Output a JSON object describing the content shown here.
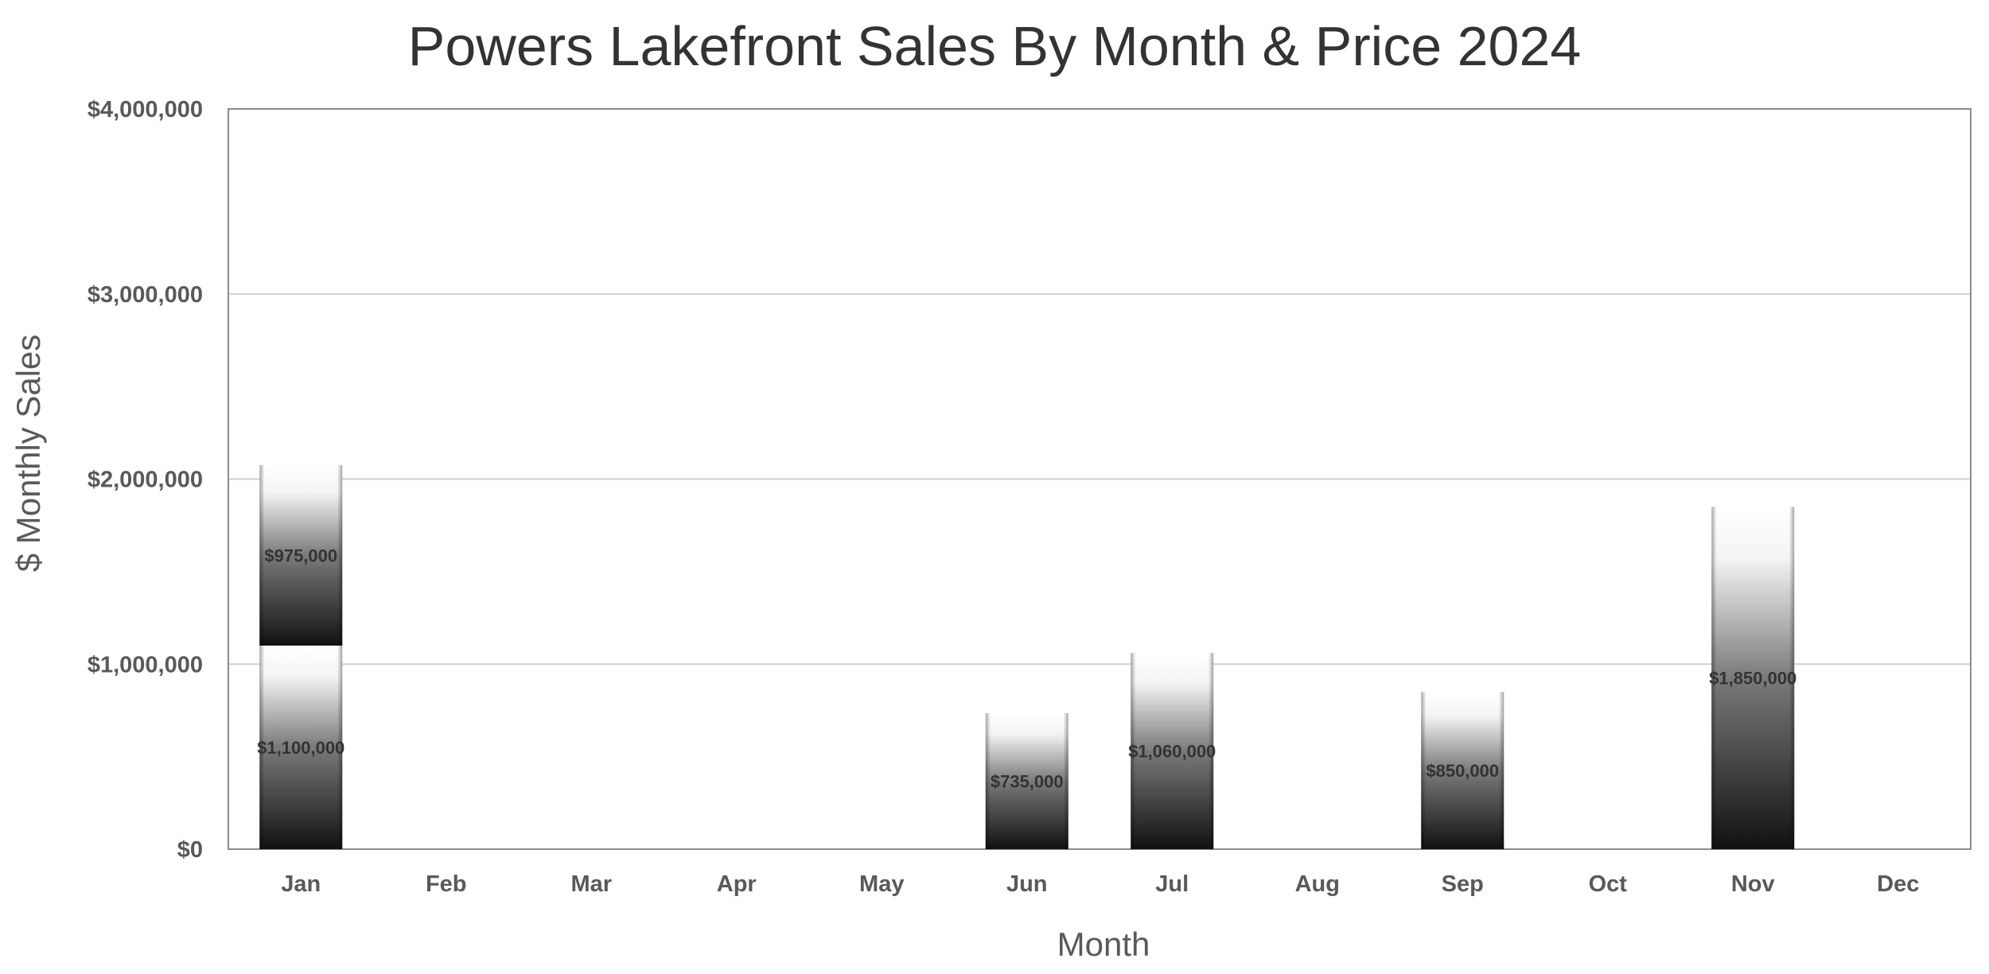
{
  "chart_data": {
    "type": "bar",
    "stacked": true,
    "title": "Powers Lakefront Sales By Month & Price 2024",
    "xlabel": "Month",
    "ylabel": "$ Monthly Sales",
    "categories": [
      "Jan",
      "Feb",
      "Mar",
      "Apr",
      "May",
      "Jun",
      "Jul",
      "Aug",
      "Sep",
      "Oct",
      "Nov",
      "Dec"
    ],
    "series": [
      {
        "values": [
          1100000,
          0,
          0,
          0,
          0,
          735000,
          1060000,
          0,
          850000,
          0,
          1850000,
          0
        ]
      },
      {
        "values": [
          975000,
          0,
          0,
          0,
          0,
          0,
          0,
          0,
          0,
          0,
          0,
          0
        ]
      }
    ],
    "data_labels": [
      [
        "$1,100,000",
        "",
        "",
        "",
        "",
        "$735,000",
        "$1,060,000",
        "",
        "$850,000",
        "",
        "$1,850,000",
        ""
      ],
      [
        "$975,000",
        "",
        "",
        "",
        "",
        "",
        "",
        "",
        "",
        "",
        "",
        ""
      ]
    ],
    "ylim": [
      0,
      4000000
    ],
    "yticks": [
      0,
      1000000,
      2000000,
      3000000,
      4000000
    ],
    "ytick_labels": [
      "$0",
      "$1,000,000",
      "$2,000,000",
      "$3,000,000",
      "$4,000,000"
    ],
    "grid": true,
    "legend": "none",
    "bar_fill": "gradient-black-to-white",
    "colors": {
      "bar_dark": "#111111",
      "bar_light": "#ffffff",
      "grid": "#d0d0d0",
      "axis": "#8c8c8c"
    }
  }
}
